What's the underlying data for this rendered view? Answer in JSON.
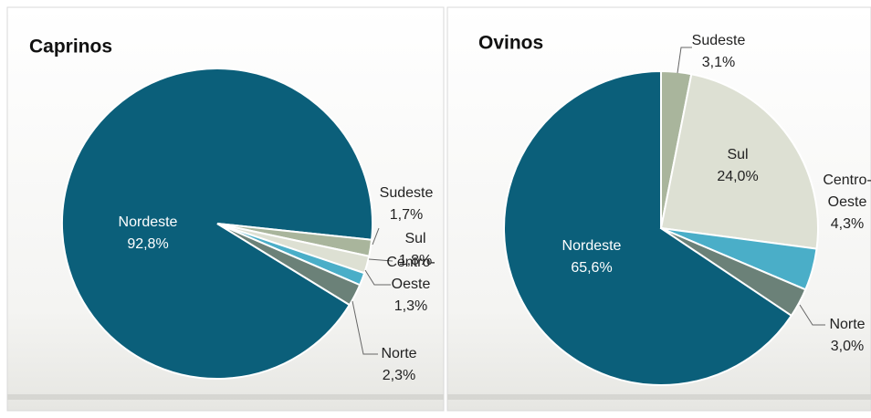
{
  "chart_data": [
    {
      "type": "pie",
      "title": "Caprinos",
      "categories": [
        "Nordeste",
        "Sudeste",
        "Sul",
        "Centro-Oeste",
        "Norte"
      ],
      "values": [
        92.8,
        1.7,
        1.8,
        1.3,
        2.3
      ],
      "value_labels": [
        "92,8%",
        "1,7%",
        "1,8%",
        "1,3%",
        "2,3%"
      ],
      "colors": [
        "#0b5f7a",
        "#a9b59c",
        "#dde0d3",
        "#4aaec8",
        "#6b8178"
      ]
    },
    {
      "type": "pie",
      "title": "Ovinos",
      "categories": [
        "Nordeste",
        "Sudeste",
        "Sul",
        "Centro-Oeste",
        "Norte"
      ],
      "values": [
        65.6,
        3.1,
        24.0,
        4.3,
        3.0
      ],
      "value_labels": [
        "65,6%",
        "3,1%",
        "24,0%",
        "4,3%",
        "3,0%"
      ],
      "colors": [
        "#0b5f7a",
        "#a9b59c",
        "#dde0d3",
        "#4aaec8",
        "#6b8178"
      ]
    }
  ]
}
